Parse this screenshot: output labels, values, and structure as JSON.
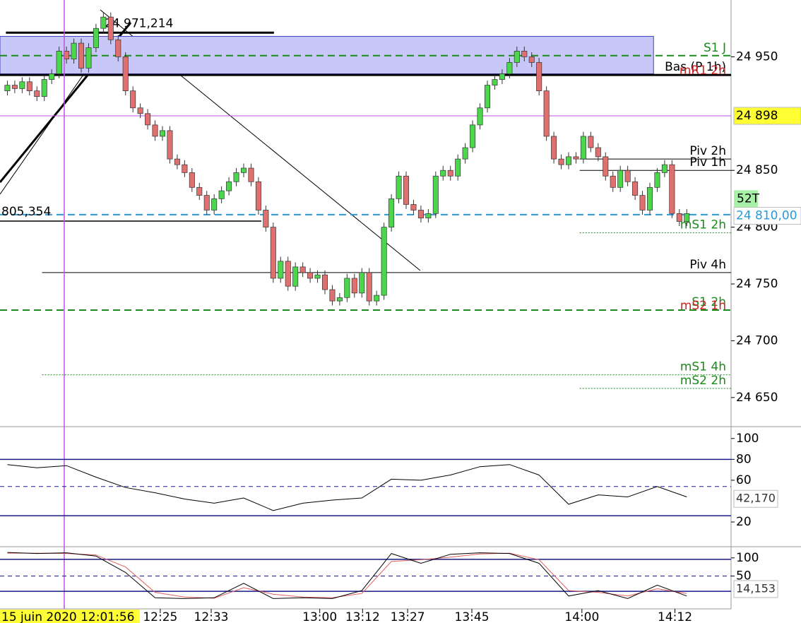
{
  "chart_data": {
    "type": "candlestick",
    "xlim": [
      -1,
      98
    ],
    "ylim": [
      24625,
      25000
    ],
    "yticks": [
      {
        "value": 24650,
        "label": "24 650"
      },
      {
        "value": 24700,
        "label": "24 700"
      },
      {
        "value": 24750,
        "label": "24 750"
      },
      {
        "value": 24800,
        "label": "24 800"
      },
      {
        "value": 24850,
        "label": "24 850"
      },
      {
        "value": 24950,
        "label": "24 950"
      }
    ],
    "xticks": [
      {
        "value": 20.7,
        "label": "12:25"
      },
      {
        "value": 27.6,
        "label": "12:33"
      },
      {
        "value": 42.3,
        "label": "13:00"
      },
      {
        "value": 48.1,
        "label": "13:12"
      },
      {
        "value": 54.2,
        "label": "13:27"
      },
      {
        "value": 62.9,
        "label": "13:45"
      },
      {
        "value": 77.8,
        "label": "14:00"
      },
      {
        "value": 90.4,
        "label": "14:12"
      }
    ],
    "up_color": "#4cd64c",
    "down_color": "#e07070",
    "candles": [
      [
        24920,
        24929,
        24916,
        24925
      ],
      [
        24925,
        24929,
        24918,
        24922
      ],
      [
        24922,
        24932,
        24918,
        24928
      ],
      [
        24928,
        24932,
        24916,
        24920
      ],
      [
        24920,
        24924,
        24911,
        24915
      ],
      [
        24915,
        24934,
        24911,
        24930
      ],
      [
        24930,
        24939,
        24926,
        24935
      ],
      [
        24935,
        24959,
        24931,
        24955
      ],
      [
        24955,
        24959,
        24944,
        24948
      ],
      [
        24948,
        24966,
        24944,
        24962
      ],
      [
        24962,
        24966,
        24936,
        24940
      ],
      [
        24940,
        24962,
        24936,
        24958
      ],
      [
        24958,
        24979,
        24954,
        24975
      ],
      [
        24975,
        24989,
        24971,
        24985
      ],
      [
        24985,
        24989,
        24961,
        24965
      ],
      [
        24965,
        24969,
        24946,
        24950
      ],
      [
        24950,
        24954,
        24916,
        24920
      ],
      [
        24920,
        24924,
        24901,
        24905
      ],
      [
        24905,
        24909,
        24896,
        24900
      ],
      [
        24900,
        24904,
        24886,
        24890
      ],
      [
        24890,
        24894,
        24876,
        24880
      ],
      [
        24880,
        24889,
        24876,
        24885
      ],
      [
        24885,
        24889,
        24856,
        24860
      ],
      [
        24860,
        24864,
        24851,
        24855
      ],
      [
        24855,
        24859,
        24844,
        24848
      ],
      [
        24848,
        24852,
        24831,
        24835
      ],
      [
        24835,
        24839,
        24824,
        24828
      ],
      [
        24828,
        24832,
        24811,
        24815
      ],
      [
        24815,
        24829,
        24811,
        24825
      ],
      [
        24825,
        24836,
        24821,
        24832
      ],
      [
        24832,
        24844,
        24828,
        24840
      ],
      [
        24840,
        24852,
        24836,
        24848
      ],
      [
        24848,
        24856,
        24844,
        24852
      ],
      [
        24852,
        24856,
        24836,
        24840
      ],
      [
        24840,
        24844,
        24811,
        24815
      ],
      [
        24815,
        24819,
        24796,
        24800
      ],
      [
        24800,
        24804,
        24751,
        24755
      ],
      [
        24755,
        24774,
        24751,
        24770
      ],
      [
        24770,
        24774,
        24744,
        24748
      ],
      [
        24748,
        24769,
        24744,
        24765
      ],
      [
        24765,
        24769,
        24756,
        24760
      ],
      [
        24760,
        24764,
        24751,
        24755
      ],
      [
        24755,
        24762,
        24751,
        24758
      ],
      [
        24758,
        24762,
        24741,
        24745
      ],
      [
        24745,
        24749,
        24731,
        24735
      ],
      [
        24735,
        24742,
        24731,
        24738
      ],
      [
        24738,
        24759,
        24734,
        24755
      ],
      [
        24755,
        24759,
        24738,
        24742
      ],
      [
        24742,
        24764,
        24738,
        24760
      ],
      [
        24760,
        24764,
        24731,
        24735
      ],
      [
        24735,
        24744,
        24731,
        24740
      ],
      [
        24740,
        24804,
        24736,
        24800
      ],
      [
        24800,
        24829,
        24796,
        24825
      ],
      [
        24825,
        24849,
        24821,
        24845
      ],
      [
        24845,
        24849,
        24816,
        24820
      ],
      [
        24820,
        24824,
        24811,
        24815
      ],
      [
        24815,
        24819,
        24804,
        24808
      ],
      [
        24808,
        24816,
        24804,
        24812
      ],
      [
        24812,
        24849,
        24808,
        24845
      ],
      [
        24845,
        24854,
        24841,
        24850
      ],
      [
        24850,
        24854,
        24841,
        24845
      ],
      [
        24845,
        24864,
        24841,
        24860
      ],
      [
        24860,
        24874,
        24856,
        24870
      ],
      [
        24870,
        24894,
        24866,
        24890
      ],
      [
        24890,
        24909,
        24886,
        24905
      ],
      [
        24905,
        24929,
        24901,
        24925
      ],
      [
        24925,
        24934,
        24921,
        24930
      ],
      [
        24930,
        24939,
        24926,
        24935
      ],
      [
        24935,
        24949,
        24931,
        24945
      ],
      [
        24945,
        24959,
        24941,
        24955
      ],
      [
        24955,
        24959,
        24946,
        24950
      ],
      [
        24950,
        24954,
        24941,
        24945
      ],
      [
        24945,
        24949,
        24916,
        24920
      ],
      [
        24920,
        24924,
        24876,
        24880
      ],
      [
        24880,
        24884,
        24856,
        24860
      ],
      [
        24860,
        24864,
        24851,
        24855
      ],
      [
        24855,
        24866,
        24851,
        24862
      ],
      [
        24862,
        24866,
        24856,
        24860
      ],
      [
        24860,
        24884,
        24856,
        24880
      ],
      [
        24880,
        24884,
        24866,
        24870
      ],
      [
        24870,
        24874,
        24858,
        24862
      ],
      [
        24862,
        24866,
        24841,
        24845
      ],
      [
        24845,
        24849,
        24831,
        24835
      ],
      [
        24835,
        24854,
        24831,
        24850
      ],
      [
        24850,
        24854,
        24836,
        24840
      ],
      [
        24840,
        24844,
        24824,
        24828
      ],
      [
        24828,
        24832,
        24811,
        24815
      ],
      [
        24815,
        24839,
        24811,
        24835
      ],
      [
        24835,
        24852,
        24831,
        24848
      ],
      [
        24848,
        24859,
        24844,
        24855
      ],
      [
        24855,
        24859,
        24808,
        24812
      ],
      [
        24812,
        24816,
        24801,
        24805
      ],
      [
        24805,
        24816,
        24801,
        24812
      ]
    ],
    "zone": {
      "from": 24935,
      "to": 24968,
      "x_end": 87.5,
      "color": "#c8c8f8"
    },
    "levels": [
      {
        "value": 24951,
        "label": "S1 J",
        "color": "#1a8a1a",
        "style": "dashed",
        "from": -1
      },
      {
        "value": 24934,
        "label": "Bas (P 1h)",
        "label2": "mR1 2h",
        "color": "#000000",
        "style": "thick",
        "from": -1
      },
      {
        "value": 24898,
        "color": "#c050e0",
        "style": "solid",
        "from": -1
      },
      {
        "value": 24860,
        "label": "Piv 2h",
        "color": "#000000",
        "style": "solid",
        "from": 77.5
      },
      {
        "value": 24850,
        "label": "Piv 1h",
        "color": "#000000",
        "style": "solid",
        "from": 77.5
      },
      {
        "value": 24811,
        "color": "#2a9ad8",
        "style": "dashed",
        "from": -1
      },
      {
        "value": 24795,
        "label": "mS1 2h",
        "color": "#1a8a1a",
        "style": "dotted",
        "from": 77.5
      },
      {
        "value": 24760,
        "label": "Piv 4h",
        "color": "#000000",
        "style": "solid",
        "from": 4.7
      },
      {
        "value": 24727,
        "label": "S1 2h",
        "label2": "mS2 1h",
        "color": "#1a8a1a",
        "style": "dashed",
        "from": -1
      },
      {
        "value": 24670,
        "label": "mS1 4h",
        "color": "#1a8a1a",
        "style": "dotted",
        "from": 4.7
      },
      {
        "value": 24658,
        "label": "mS2 2h",
        "color": "#1a8a1a",
        "style": "dotted",
        "from": 77.5
      }
    ],
    "marked_lines": [
      {
        "value": 24971.214,
        "label": "24 971,214",
        "from": -0.2,
        "to": 36.1
      },
      {
        "value": 24805.354,
        "label": "805,354",
        "from": -1,
        "to": 34.4
      }
    ],
    "price_tags": [
      {
        "value": 24898,
        "label": "24 898",
        "bg": "#ffff33",
        "fg": "#000000"
      },
      {
        "value": 24810,
        "label": "24 810,00",
        "bg": "#ffffff",
        "fg": "#2a9ad8"
      }
    ],
    "timer_label": "52T",
    "cursor": {
      "x": 7.7,
      "label": "15 juin 2020 12:01:56"
    },
    "panels": [
      {
        "ylim": [
          -3,
          110
        ],
        "yticks": [
          100,
          80,
          60,
          20
        ],
        "levels": [
          80,
          54,
          26
        ],
        "x": [
          0,
          4,
          8,
          12,
          16,
          20,
          24,
          28,
          32,
          36,
          40,
          44,
          48,
          52,
          56,
          60,
          64,
          68,
          72,
          76,
          80,
          84,
          88,
          92
        ],
        "values": [
          75,
          72,
          74,
          63,
          53,
          48,
          42,
          38,
          43,
          31,
          38,
          41,
          43,
          61,
          60,
          65,
          73,
          75,
          65,
          37,
          46,
          44,
          54,
          44
        ],
        "last": {
          "value": 42.17,
          "label": "42,170"
        }
      },
      {
        "ylim": [
          -38.5,
          128.8
        ],
        "yticks": [
          100,
          50
        ],
        "levels": [
          96,
          50,
          8
        ],
        "x": [
          0,
          4,
          8,
          12,
          16,
          20,
          24,
          28,
          32,
          36,
          40,
          44,
          48,
          52,
          56,
          60,
          64,
          68,
          72,
          76,
          80,
          84,
          88,
          92
        ],
        "values": [
          115,
          112,
          114,
          105,
          60,
          -10,
          -12,
          -10,
          30,
          -12,
          -10,
          -12,
          10,
          112,
          85,
          110,
          114,
          112,
          85,
          -5,
          10,
          -12,
          25,
          -5
        ],
        "signal": [
          113,
          113,
          112,
          108,
          75,
          5,
          -8,
          -11,
          18,
          0,
          -8,
          -10,
          2,
          90,
          95,
          102,
          111,
          113,
          95,
          10,
          5,
          -5,
          15,
          2
        ],
        "last": {
          "value": 14.153,
          "label": "14,153"
        }
      }
    ]
  }
}
